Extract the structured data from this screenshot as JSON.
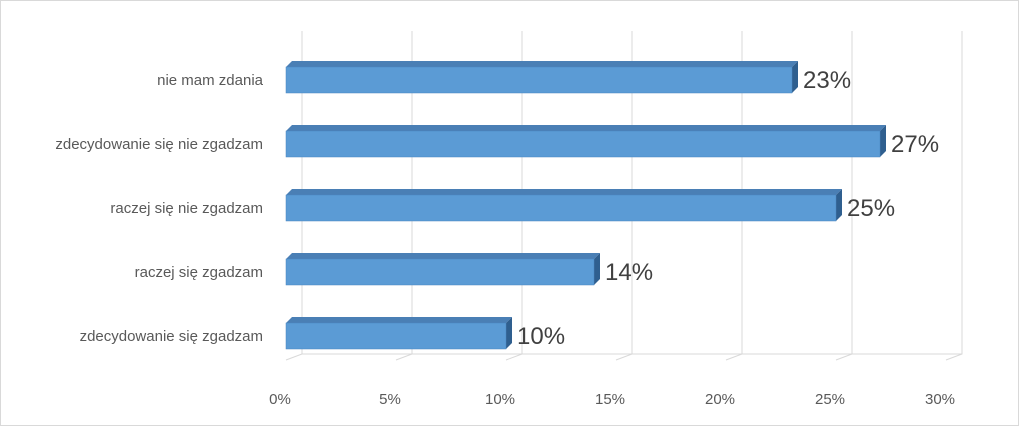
{
  "chart_data": {
    "type": "bar",
    "orientation": "horizontal",
    "title": "",
    "xlabel": "",
    "ylabel": "",
    "categories": [
      "nie mam zdania",
      "zdecydowanie się nie zgadzam",
      "raczej  się nie zgadzam",
      "raczej się zgadzam",
      "zdecydowanie się zgadzam"
    ],
    "values": [
      23,
      27,
      25,
      14,
      10
    ],
    "data_labels": [
      "23%",
      "27%",
      "25%",
      "14%",
      "10%"
    ],
    "xlim": [
      0,
      30
    ],
    "x_ticks": [
      0,
      5,
      10,
      15,
      20,
      25,
      30
    ],
    "x_tick_labels": [
      "0%",
      "5%",
      "10%",
      "15%",
      "20%",
      "25%",
      "30%"
    ],
    "grid": true,
    "legend": "none",
    "colors": {
      "bar_front": "#5B9BD5",
      "bar_top": "#4A7FB5",
      "bar_side": "#2F5F8F",
      "grid": "#d9d9d9"
    }
  }
}
